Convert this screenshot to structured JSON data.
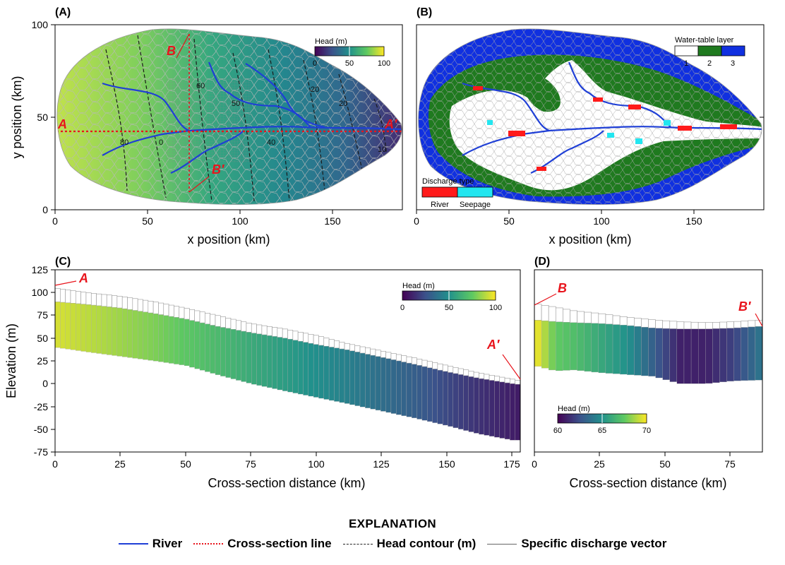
{
  "colors": {
    "river": "#1f3fd6",
    "cross_section": "#e8141c",
    "contour": "#222222",
    "discharge_river": "#ff1a1a",
    "discharge_seepage": "#22e6f0",
    "wt_layer1": "#ffffff",
    "wt_layer2": "#1f7a1f",
    "wt_layer3": "#1030e0",
    "viridis": [
      "#440154",
      "#3b528b",
      "#21918c",
      "#5ec962",
      "#fde725"
    ]
  },
  "panels": {
    "a": {
      "label": "(A)",
      "xlabel": "x position (km)",
      "ylabel": "y position (km)",
      "xticks": [
        "0",
        "50",
        "100",
        "150"
      ],
      "yticks": [
        "0",
        "50",
        "100"
      ],
      "colorbar_title": "Head (m)",
      "colorbar_ticks": [
        "0",
        "50",
        "100"
      ],
      "marker_a": "A",
      "marker_a_prime": "A′",
      "marker_b": "B",
      "marker_b_prime": "B′",
      "contour_labels": [
        "60",
        "50",
        "40",
        "20",
        "80",
        "0",
        "10",
        "20"
      ]
    },
    "b": {
      "label": "(B)",
      "xlabel": "x position (km)",
      "xticks": [
        "0",
        "50",
        "100",
        "150"
      ],
      "legend_title": "Water-table layer",
      "legend_ticks": [
        "1",
        "2",
        "3"
      ],
      "discharge_title": "Discharge type",
      "discharge_labels": [
        "River",
        "Seepage"
      ]
    },
    "c": {
      "label": "(C)",
      "xlabel": "Cross-section distance (km)",
      "ylabel": "Elevation (m)",
      "xticks": [
        "0",
        "25",
        "50",
        "75",
        "100",
        "125",
        "150",
        "175"
      ],
      "yticks": [
        "125",
        "100",
        "75",
        "50",
        "25",
        "0",
        "-25",
        "-50",
        "-75"
      ],
      "colorbar_title": "Head (m)",
      "colorbar_ticks": [
        "0",
        "50",
        "100"
      ],
      "marker_start": "A",
      "marker_end": "A′"
    },
    "d": {
      "label": "(D)",
      "xlabel": "Cross-section distance (km)",
      "xticks": [
        "0",
        "25",
        "50",
        "75"
      ],
      "colorbar_title": "Head (m)",
      "colorbar_ticks": [
        "60",
        "65",
        "70"
      ],
      "marker_start": "B",
      "marker_end": "B′"
    }
  },
  "explanation": {
    "title": "EXPLANATION",
    "river": "River",
    "cross_section": "Cross-section line",
    "contour": "Head contour (m)",
    "vector": "Specific discharge vector"
  },
  "chart_data": [
    {
      "type": "heatmap",
      "panel": "A",
      "title": "",
      "xlabel": "x position (km)",
      "ylabel": "y position (km)",
      "xlim": [
        0,
        188
      ],
      "ylim": [
        0,
        100
      ],
      "colorbar": {
        "label": "Head (m)",
        "range": [
          0,
          100
        ]
      },
      "cross_section_A": {
        "y": 42,
        "x": [
          0,
          188
        ]
      },
      "cross_section_B": {
        "x": 73,
        "y": [
          10,
          96
        ]
      }
    },
    {
      "type": "heatmap",
      "panel": "B",
      "xlabel": "x position (km)",
      "xlim": [
        0,
        188
      ],
      "ylim": [
        0,
        100
      ],
      "categories": [
        "1",
        "2",
        "3"
      ],
      "legend": [
        "Water-table layer",
        "Discharge type: River",
        "Discharge type: Seepage"
      ]
    },
    {
      "type": "bar",
      "panel": "C",
      "xlabel": "Cross-section distance (km)",
      "ylabel": "Elevation (m)",
      "xlim": [
        0,
        178
      ],
      "ylim": [
        -75,
        125
      ],
      "x": [
        0,
        12,
        25,
        38,
        50,
        62,
        75,
        88,
        100,
        112,
        125,
        138,
        150,
        162,
        175,
        178
      ],
      "top": [
        105,
        100,
        96,
        90,
        83,
        75,
        66,
        60,
        53,
        44,
        36,
        28,
        20,
        12,
        5,
        3
      ],
      "water": [
        90,
        87,
        83,
        77,
        71,
        63,
        56,
        50,
        43,
        37,
        29,
        21,
        13,
        6,
        0,
        -1
      ],
      "bottom": [
        40,
        35,
        30,
        25,
        20,
        10,
        0,
        -8,
        -15,
        -22,
        -30,
        -38,
        -46,
        -55,
        -62,
        -62
      ],
      "head": [
        94,
        90,
        85,
        80,
        74,
        68,
        61,
        55,
        49,
        43,
        36,
        30,
        22,
        15,
        9,
        8
      ],
      "colorbar": {
        "label": "Head (m)",
        "range": [
          0,
          100
        ]
      }
    },
    {
      "type": "bar",
      "panel": "D",
      "xlabel": "Cross-section distance (km)",
      "xlim": [
        0,
        86
      ],
      "ylim": [
        -75,
        125
      ],
      "x": [
        0,
        8,
        15,
        25,
        35,
        45,
        55,
        65,
        75,
        86
      ],
      "top": [
        88,
        84,
        80,
        77,
        73,
        70,
        68,
        67,
        68,
        70
      ],
      "water": [
        70,
        68,
        67,
        66,
        64,
        61,
        60,
        60,
        61,
        63
      ],
      "bottom": [
        20,
        14,
        15,
        12,
        10,
        8,
        0,
        0,
        3,
        4
      ],
      "head": [
        70,
        67.5,
        67,
        66,
        65,
        63,
        61,
        61,
        62,
        64
      ],
      "colorbar": {
        "label": "Head (m)",
        "range": [
          60,
          70
        ]
      }
    }
  ]
}
